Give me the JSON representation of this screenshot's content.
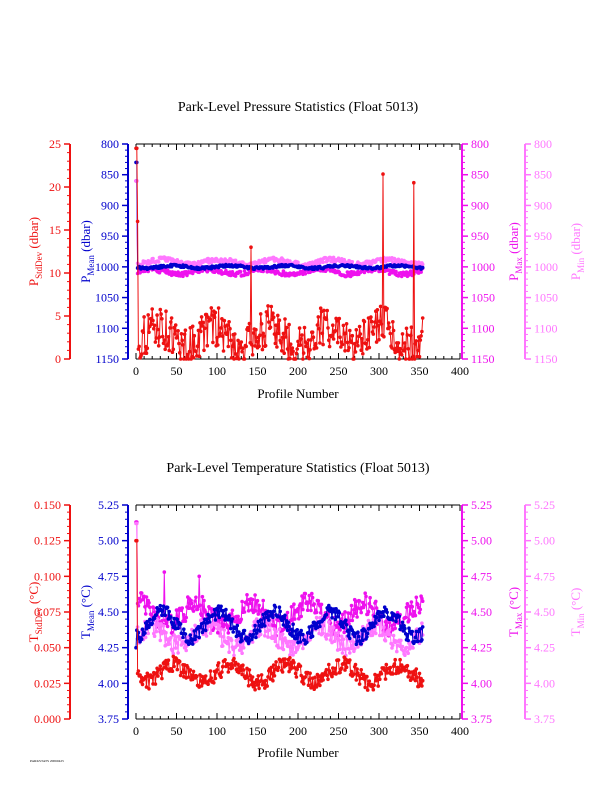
{
  "footer": "PARKSTATS 20060425",
  "colors": {
    "stddev": "#ee1111",
    "mean": "#0000cc",
    "max": "#ee11ee",
    "min": "#ff77ff",
    "axis": "#000000"
  },
  "chart_data": [
    {
      "type": "line",
      "title": "Park-Level Pressure Statistics (Float 5013)",
      "xlabel": "Profile Number",
      "xlim": [
        0,
        400
      ],
      "xticks": [
        "0",
        "50",
        "100",
        "150",
        "200",
        "250",
        "300",
        "350",
        "400"
      ],
      "axes": {
        "stddev": {
          "sym": "P",
          "sub": "StdDev",
          "unit": "(dbar)",
          "lim": [
            0,
            25
          ],
          "ticks": [
            "0",
            "5",
            "10",
            "15",
            "20",
            "25"
          ]
        },
        "mean": {
          "sym": "P",
          "sub": "Mean",
          "unit": "(dbar)",
          "lim": [
            1150,
            800
          ],
          "reversed": true,
          "ticks": [
            "1150",
            "1100",
            "1050",
            "1000",
            "950",
            "900",
            "850",
            "800"
          ]
        },
        "max": {
          "sym": "P",
          "sub": "Max",
          "unit": "(dbar)",
          "lim": [
            1150,
            800
          ],
          "reversed": true,
          "ticks": [
            "1150",
            "1100",
            "1050",
            "1000",
            "950",
            "900",
            "850",
            "800"
          ]
        },
        "min": {
          "sym": "P",
          "sub": "Min",
          "unit": "(dbar)",
          "lim": [
            1150,
            800
          ],
          "reversed": true,
          "ticks": [
            "1150",
            "1100",
            "1050",
            "1000",
            "950",
            "900",
            "850",
            "800"
          ]
        }
      },
      "series": [
        {
          "key": "max",
          "approx": {
            "n": 355,
            "base": 1008,
            "amp": 4,
            "noise": 4,
            "start": 860,
            "spikes": [
              [
                1,
                860
              ]
            ]
          }
        },
        {
          "key": "min",
          "approx": {
            "n": 355,
            "base": 992,
            "amp": 4,
            "noise": 4,
            "start": 860,
            "spikes": [
              [
                1,
                860
              ]
            ]
          }
        },
        {
          "key": "mean",
          "approx": {
            "n": 355,
            "base": 1000,
            "amp": 2,
            "noise": 2,
            "start": 830,
            "spikes": [
              [
                1,
                830
              ]
            ]
          }
        },
        {
          "key": "stddev",
          "approx": {
            "n": 355,
            "base": 2.6,
            "amp": 1.2,
            "noise": 2.4,
            "start": 24.5,
            "spikes": [
              [
                1,
                24.5
              ],
              [
                2,
                16
              ],
              [
                142,
                13
              ],
              [
                305,
                21.5
              ],
              [
                343,
                20.5
              ]
            ]
          }
        }
      ]
    },
    {
      "type": "line",
      "title": "Park-Level Temperature Statistics (Float 5013)",
      "xlabel": "Profile Number",
      "xlim": [
        0,
        400
      ],
      "xticks": [
        "0",
        "50",
        "100",
        "150",
        "200",
        "250",
        "300",
        "350",
        "400"
      ],
      "axes": {
        "stddev": {
          "sym": "T",
          "sub": "StdDev",
          "unit": "(°C)",
          "lim": [
            0,
            0.15
          ],
          "ticks": [
            "0.000",
            "0.025",
            "0.050",
            "0.075",
            "0.100",
            "0.125",
            "0.150"
          ]
        },
        "mean": {
          "sym": "T",
          "sub": "Mean",
          "unit": "(°C)",
          "lim": [
            3.75,
            5.25
          ],
          "ticks": [
            "3.75",
            "4.00",
            "4.25",
            "4.50",
            "4.75",
            "5.00",
            "5.25"
          ]
        },
        "max": {
          "sym": "T",
          "sub": "Max",
          "unit": "(°C)",
          "lim": [
            3.75,
            5.25
          ],
          "ticks": [
            "3.75",
            "4.00",
            "4.25",
            "4.50",
            "4.75",
            "5.00",
            "5.25"
          ]
        },
        "min": {
          "sym": "T",
          "sub": "Min",
          "unit": "(°C)",
          "lim": [
            3.75,
            5.25
          ],
          "ticks": [
            "3.75",
            "4.00",
            "4.25",
            "4.50",
            "4.75",
            "5.00",
            "5.25"
          ]
        }
      },
      "series": [
        {
          "key": "max",
          "approx": {
            "n": 355,
            "base": 4.48,
            "amp": 0.08,
            "noise": 0.08,
            "start": 5.13,
            "spikes": [
              [
                1,
                5.13
              ],
              [
                35,
                4.78
              ],
              [
                78,
                4.75
              ]
            ]
          }
        },
        {
          "key": "min",
          "approx": {
            "n": 355,
            "base": 4.33,
            "amp": 0.07,
            "noise": 0.07,
            "start": 5.12,
            "spikes": [
              [
                1,
                5.12
              ]
            ]
          }
        },
        {
          "key": "mean",
          "approx": {
            "n": 355,
            "base": 4.41,
            "amp": 0.09,
            "noise": 0.05,
            "start": 4.25,
            "spikes": []
          }
        },
        {
          "key": "stddev",
          "approx": {
            "n": 355,
            "base": 0.032,
            "amp": 0.006,
            "noise": 0.006,
            "start": 0.125,
            "spikes": [
              [
                1,
                0.125
              ]
            ]
          }
        }
      ]
    }
  ]
}
